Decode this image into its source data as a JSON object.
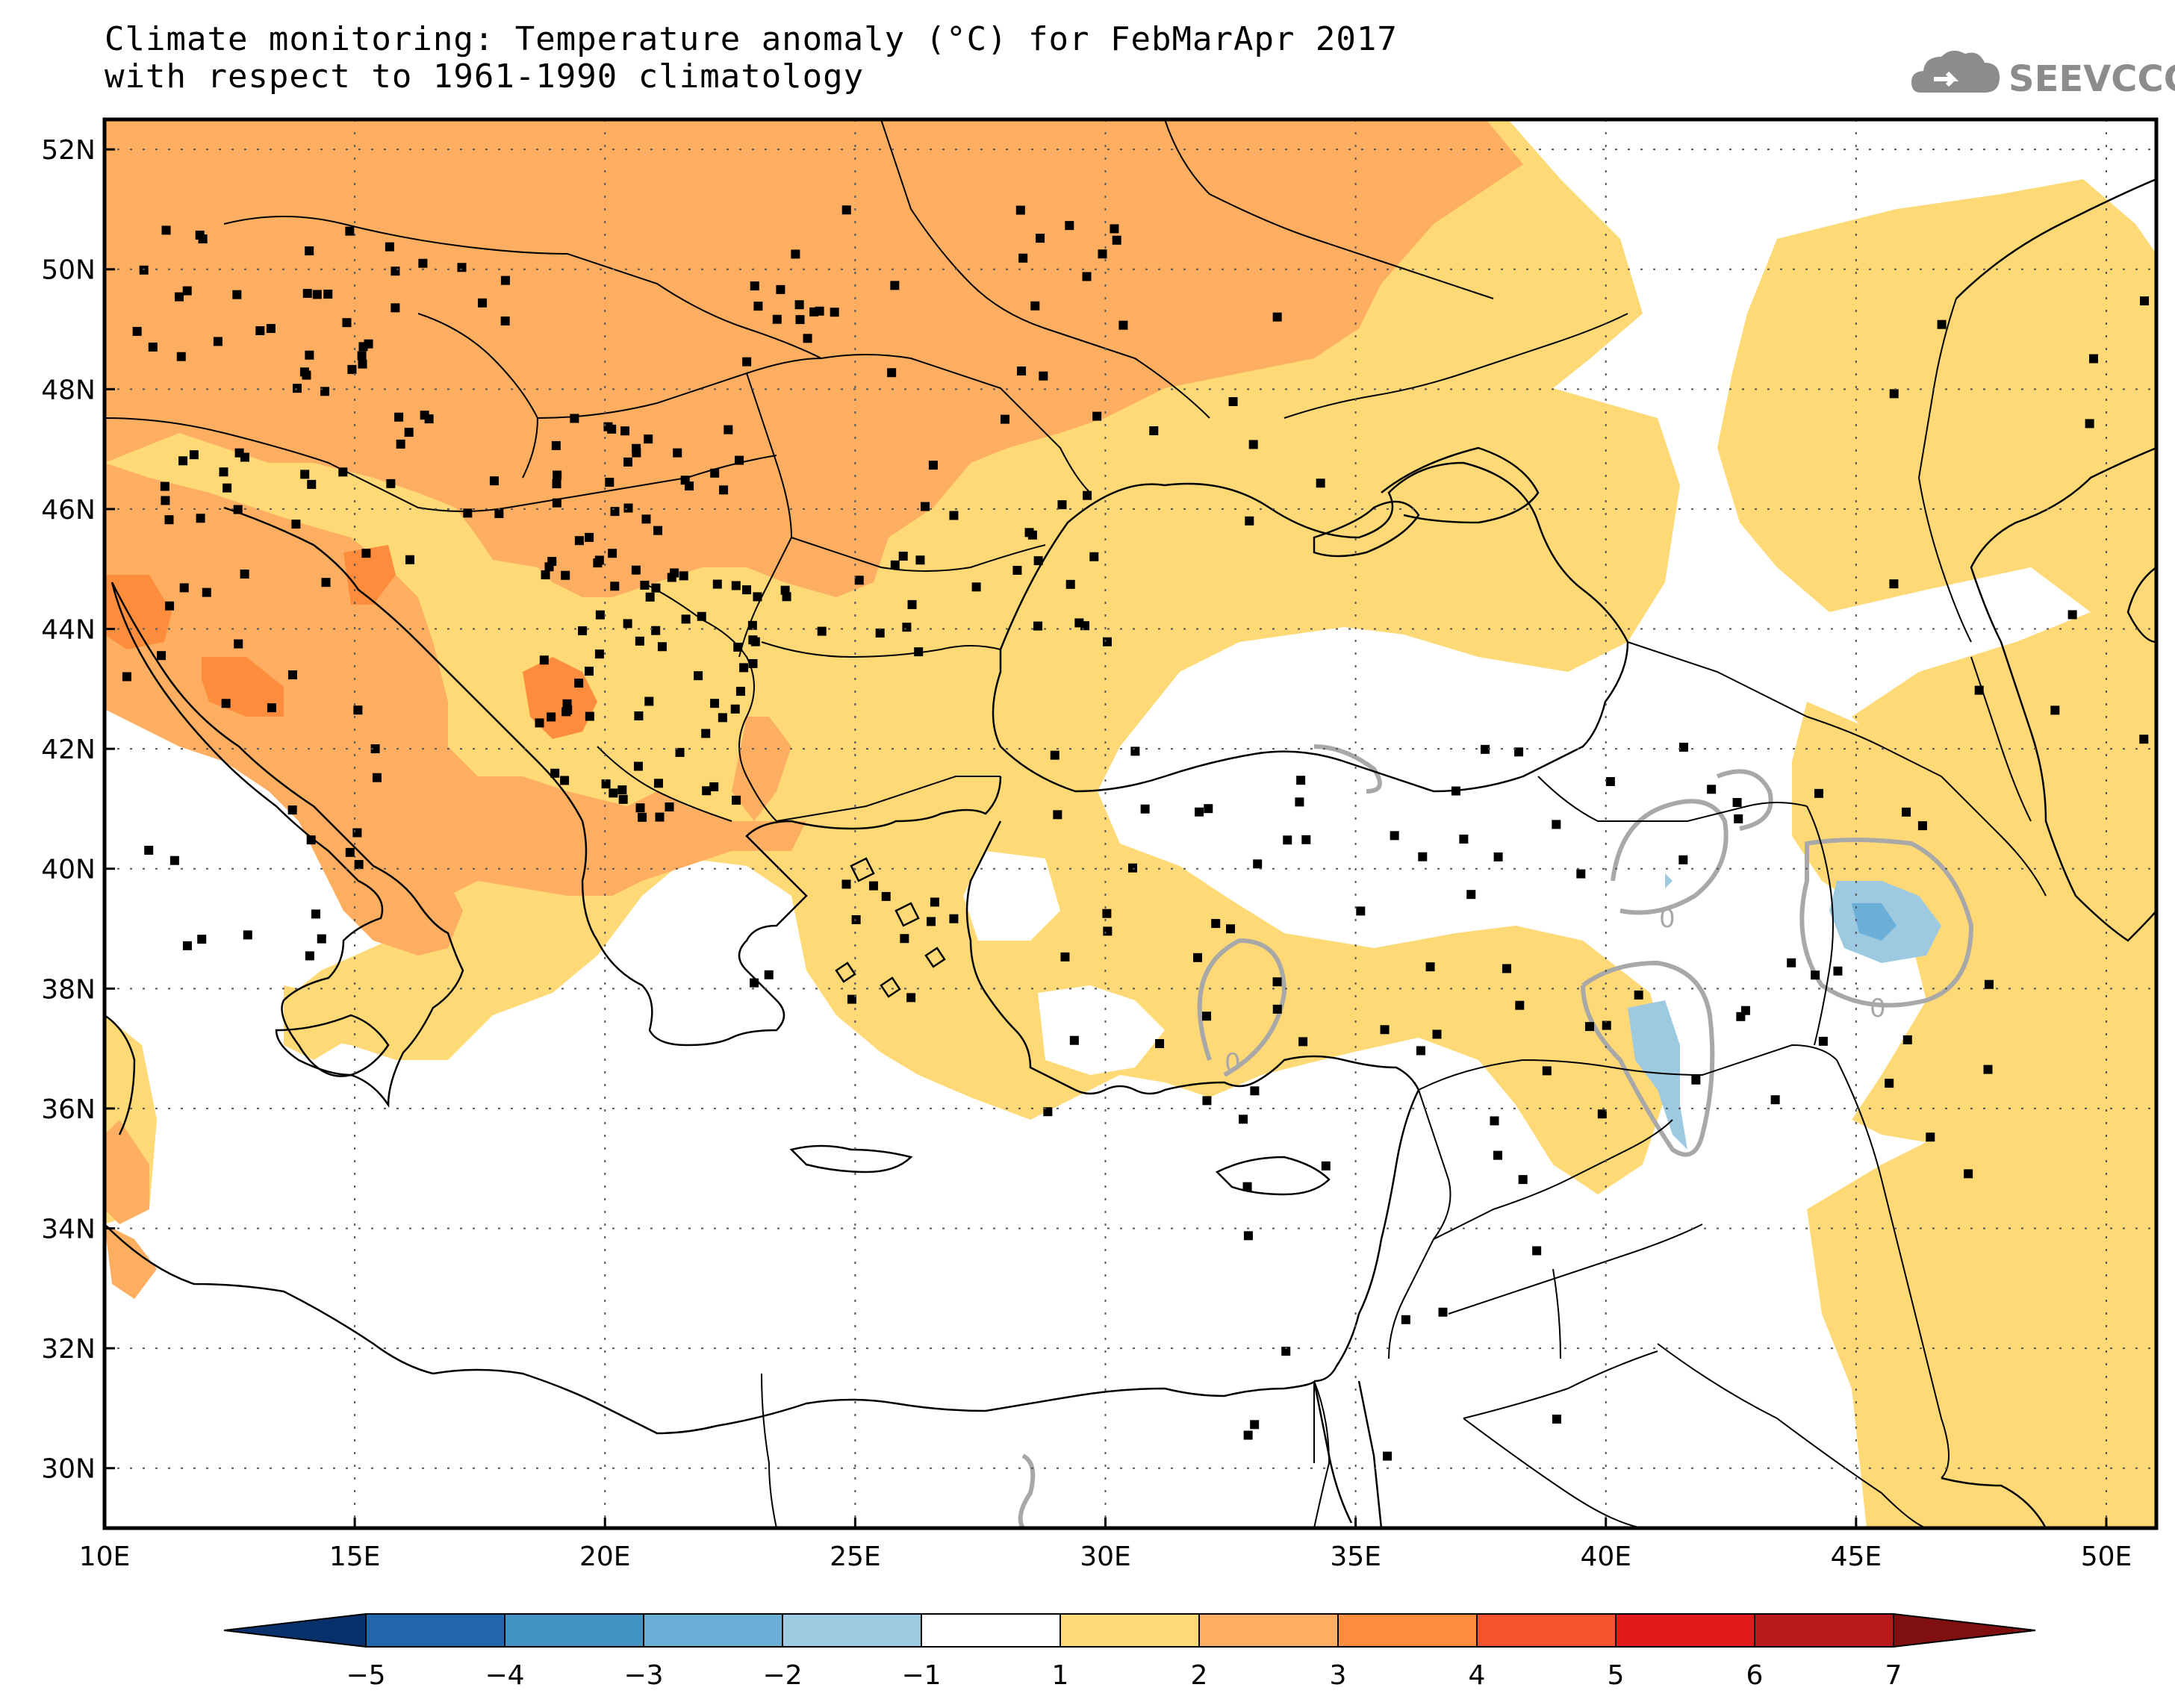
{
  "title": {
    "line1": "Climate monitoring: Temperature anomaly (°C) for FebMarApr 2017",
    "line2": "with respect to 1961-1990 climatology"
  },
  "logo": {
    "text": "SEEVCCC",
    "icon": "cloud-icon"
  },
  "axes": {
    "lon_labels": [
      "10E",
      "15E",
      "20E",
      "25E",
      "30E",
      "35E",
      "40E",
      "45E",
      "50E"
    ],
    "lat_labels": [
      "52N",
      "50N",
      "48N",
      "46N",
      "44N",
      "42N",
      "40N",
      "38N",
      "36N",
      "34N",
      "32N",
      "30N"
    ],
    "lon_range": [
      10,
      51
    ],
    "lat_range": [
      29,
      52.5
    ]
  },
  "contour_label": "0",
  "colorbar": {
    "labels": [
      "-5",
      "-4",
      "-3",
      "-2",
      "-1",
      "1",
      "2",
      "3",
      "4",
      "5",
      "6",
      "7"
    ],
    "colors": [
      "#08306b",
      "#2166ac",
      "#4393c3",
      "#6baed6",
      "#9ecae1",
      "#ffffff",
      "#fed976",
      "#fdae61",
      "#fd8d3c",
      "#f4532d",
      "#e31a1c",
      "#b81b1b",
      "#800f0f"
    ]
  },
  "colors": {
    "anomaly_1_2": "#fed976",
    "anomaly_2_3": "#fdae61",
    "anomaly_3_4": "#fd8d3c",
    "anomaly_neg_1_2": "#9ecae1",
    "anomaly_neg_2_3": "#6baed6",
    "contour_zero": "#a8a8a8"
  }
}
